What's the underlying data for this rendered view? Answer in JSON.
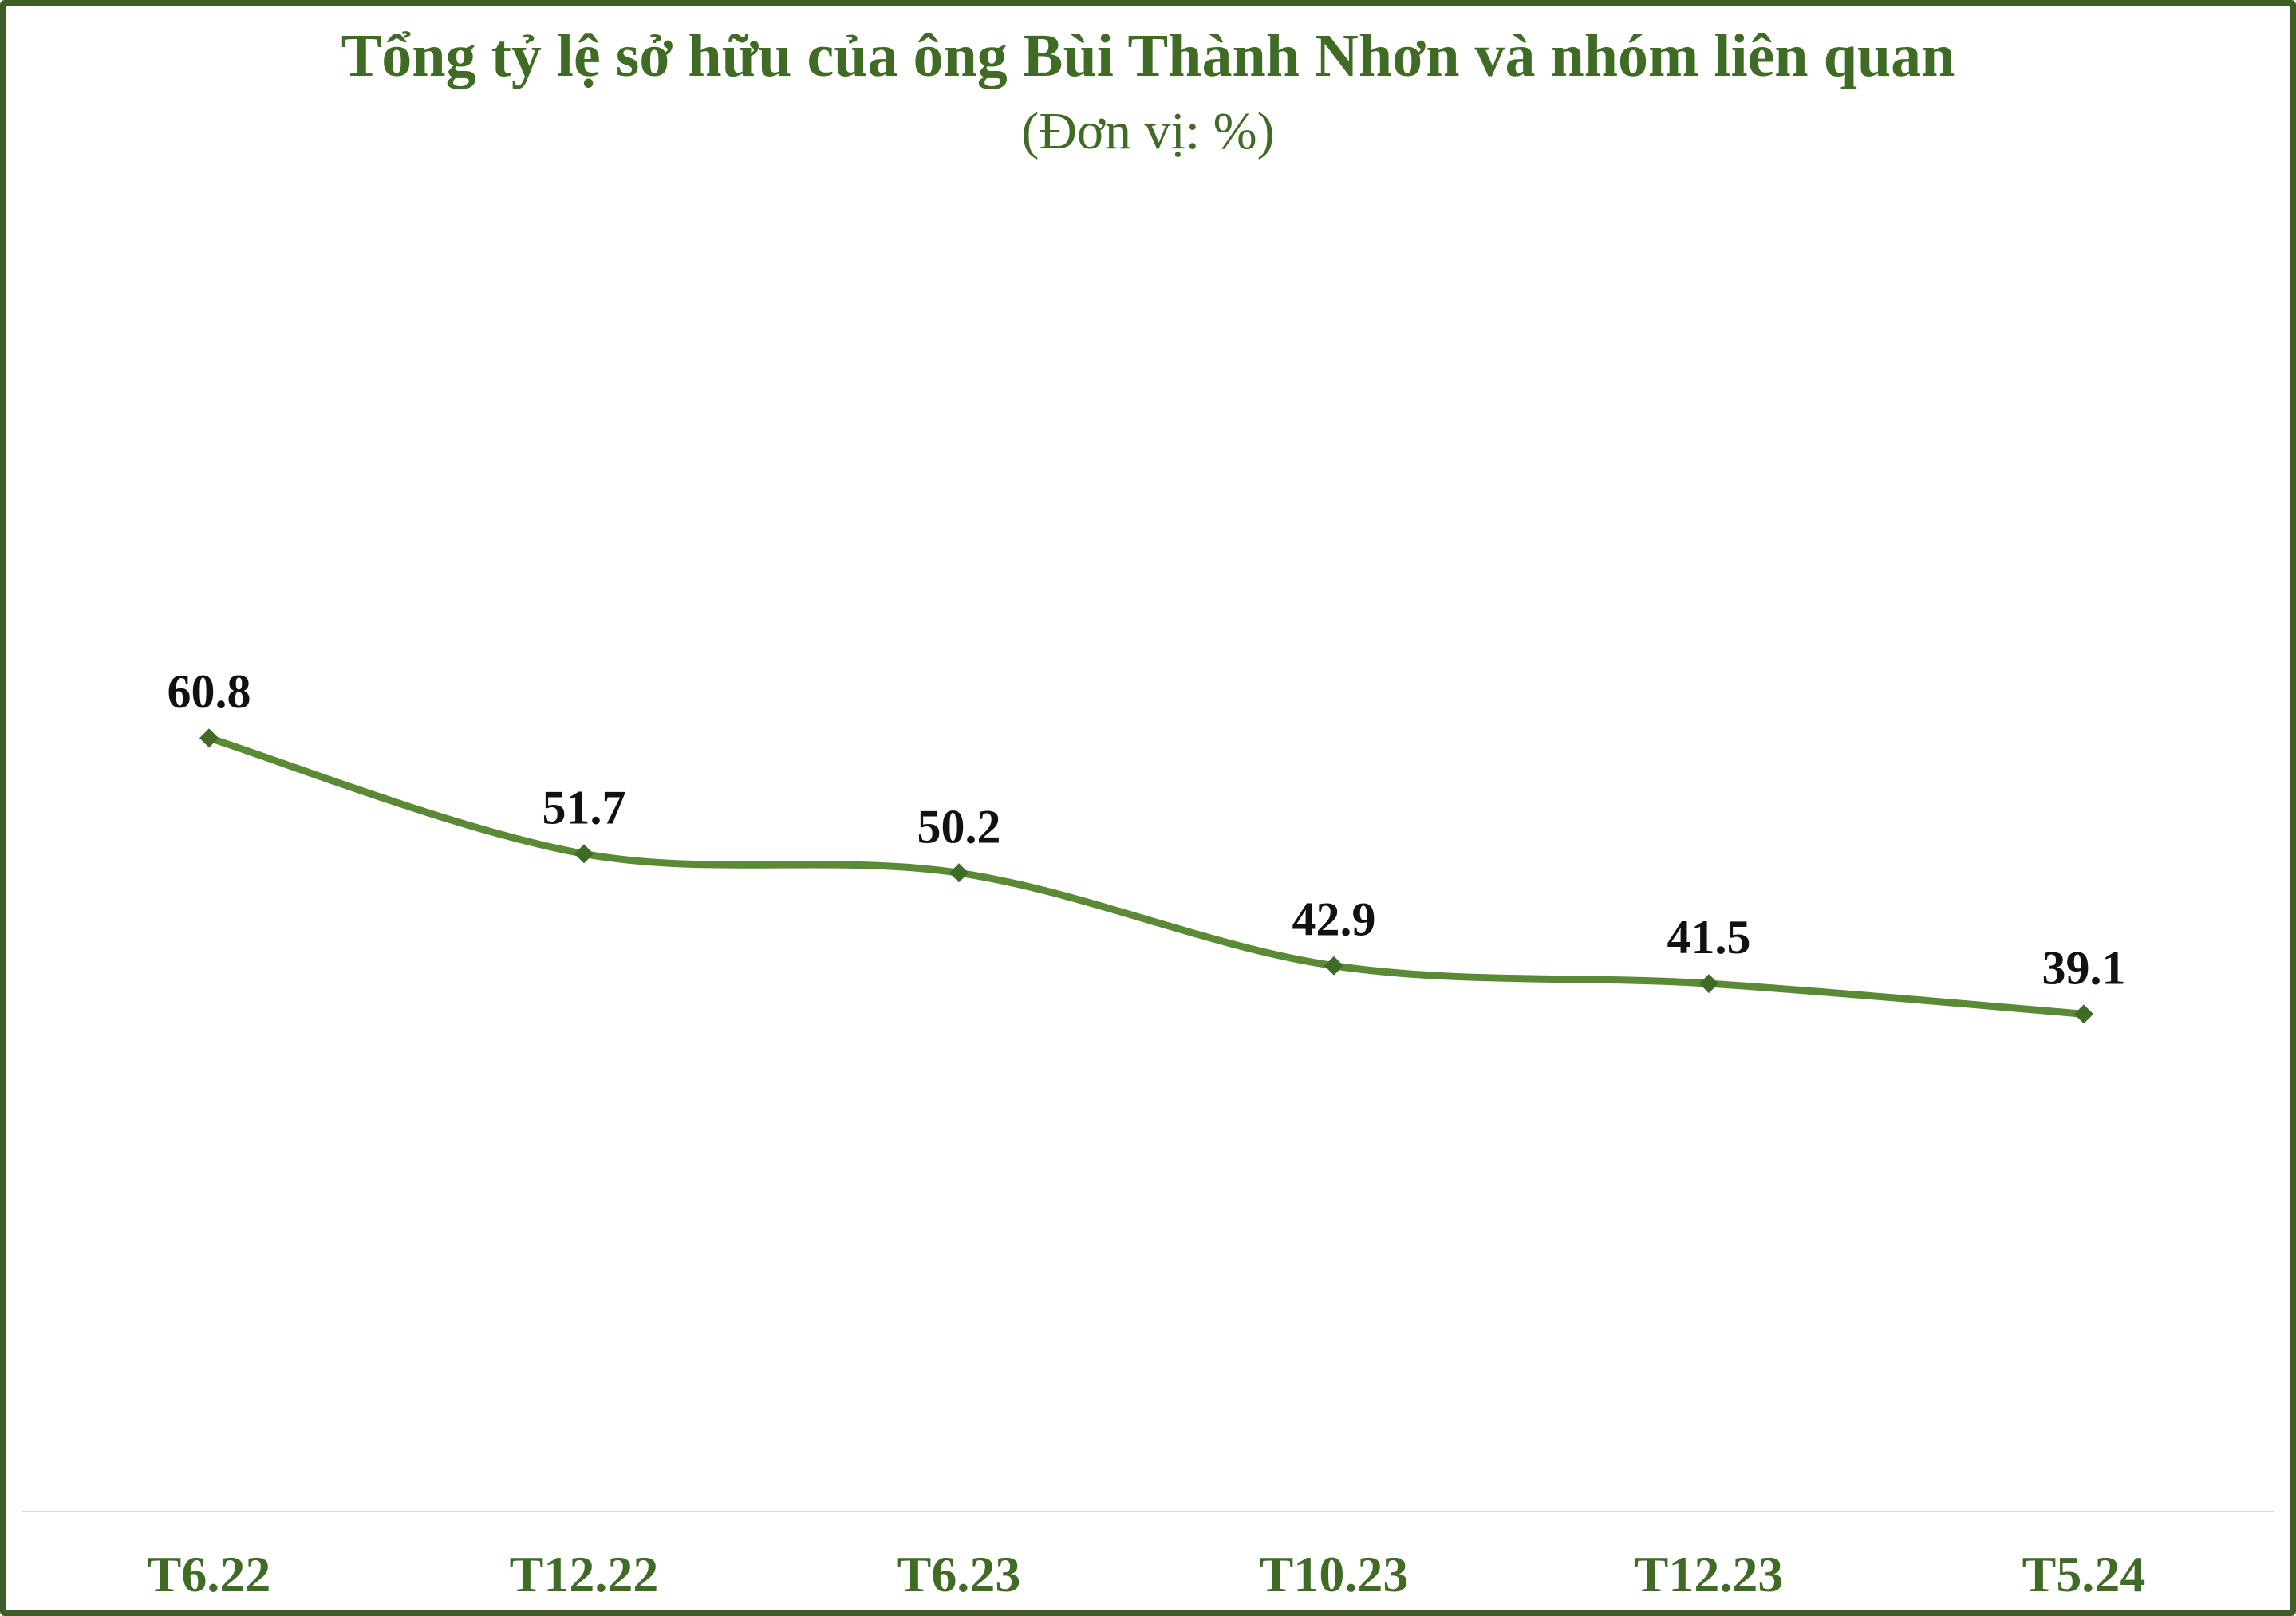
{
  "chart_data": {
    "type": "line",
    "title": "Tổng tỷ lệ sở hữu của ông Bùi Thành Nhơn và nhóm liên quan",
    "subtitle": "(Đơn vị: %)",
    "categories": [
      "T6.22",
      "T12.22",
      "T6.23",
      "T10.23",
      "T12.23",
      "T5.24"
    ],
    "series": [
      {
        "values": [
          60.8,
          51.7,
          50.2,
          42.9,
          41.5,
          39.1
        ]
      }
    ],
    "data_labels": [
      "60.8",
      "51.7",
      "50.2",
      "42.9",
      "41.5",
      "39.1"
    ],
    "xlabel": "",
    "ylabel": "",
    "ylim": [
      0,
      80
    ],
    "grid": false,
    "legend": "none",
    "smooth": true,
    "marker": "diamond",
    "colors": {
      "line": "#5a8a35",
      "marker": "#3f6b25",
      "text": "#3f6b25",
      "frame": "#3f5f28",
      "baseline": "#d9d9d9"
    }
  }
}
